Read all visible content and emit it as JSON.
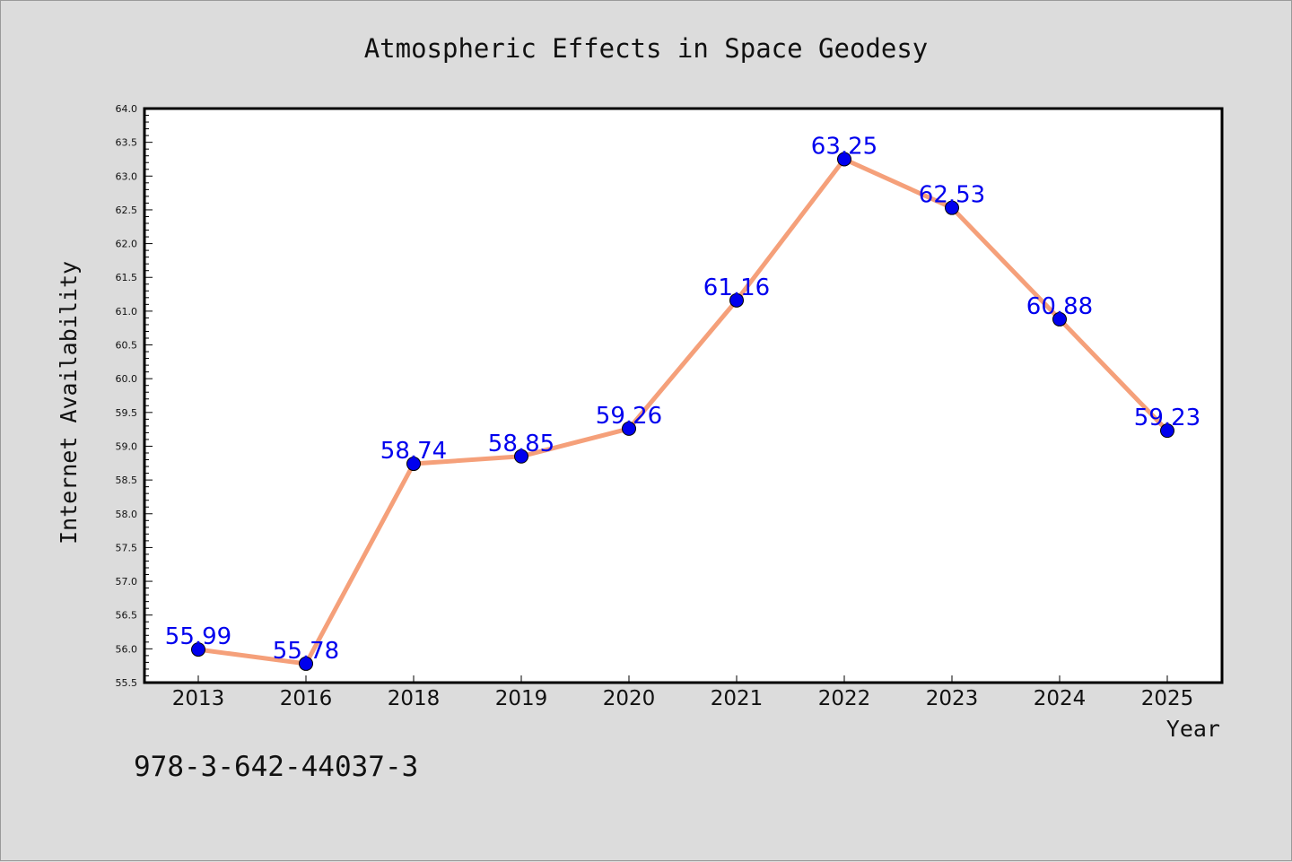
{
  "chart_data": {
    "type": "line",
    "title": "Atmospheric Effects in Space Geodesy",
    "xlabel": "Year",
    "ylabel": "Internet Availability",
    "categories": [
      "2013",
      "2016",
      "2018",
      "2019",
      "2020",
      "2021",
      "2022",
      "2023",
      "2024",
      "2025"
    ],
    "values": [
      55.99,
      55.78,
      58.74,
      58.85,
      59.26,
      61.16,
      63.25,
      62.53,
      60.88,
      59.23
    ],
    "data_labels": [
      "55.99",
      "55.78",
      "58.74",
      "58.85",
      "59.26",
      "61.16",
      "63.25",
      "62.53",
      "60.88",
      "59.23"
    ],
    "ylim": [
      55.5,
      64.0
    ],
    "yticks": [
      "55.5",
      "56.0",
      "56.5",
      "57.0",
      "57.5",
      "58.0",
      "58.5",
      "59.0",
      "59.5",
      "60.0",
      "60.5",
      "61.0",
      "61.5",
      "62.0",
      "62.5",
      "63.0",
      "63.5",
      "64.0"
    ],
    "grid": false,
    "legend": "none",
    "line_color": "#f5a07a",
    "marker_color": "#0000ee",
    "label_color": "#0000ee"
  },
  "footer": {
    "isbn": "978-3-642-44037-3"
  }
}
